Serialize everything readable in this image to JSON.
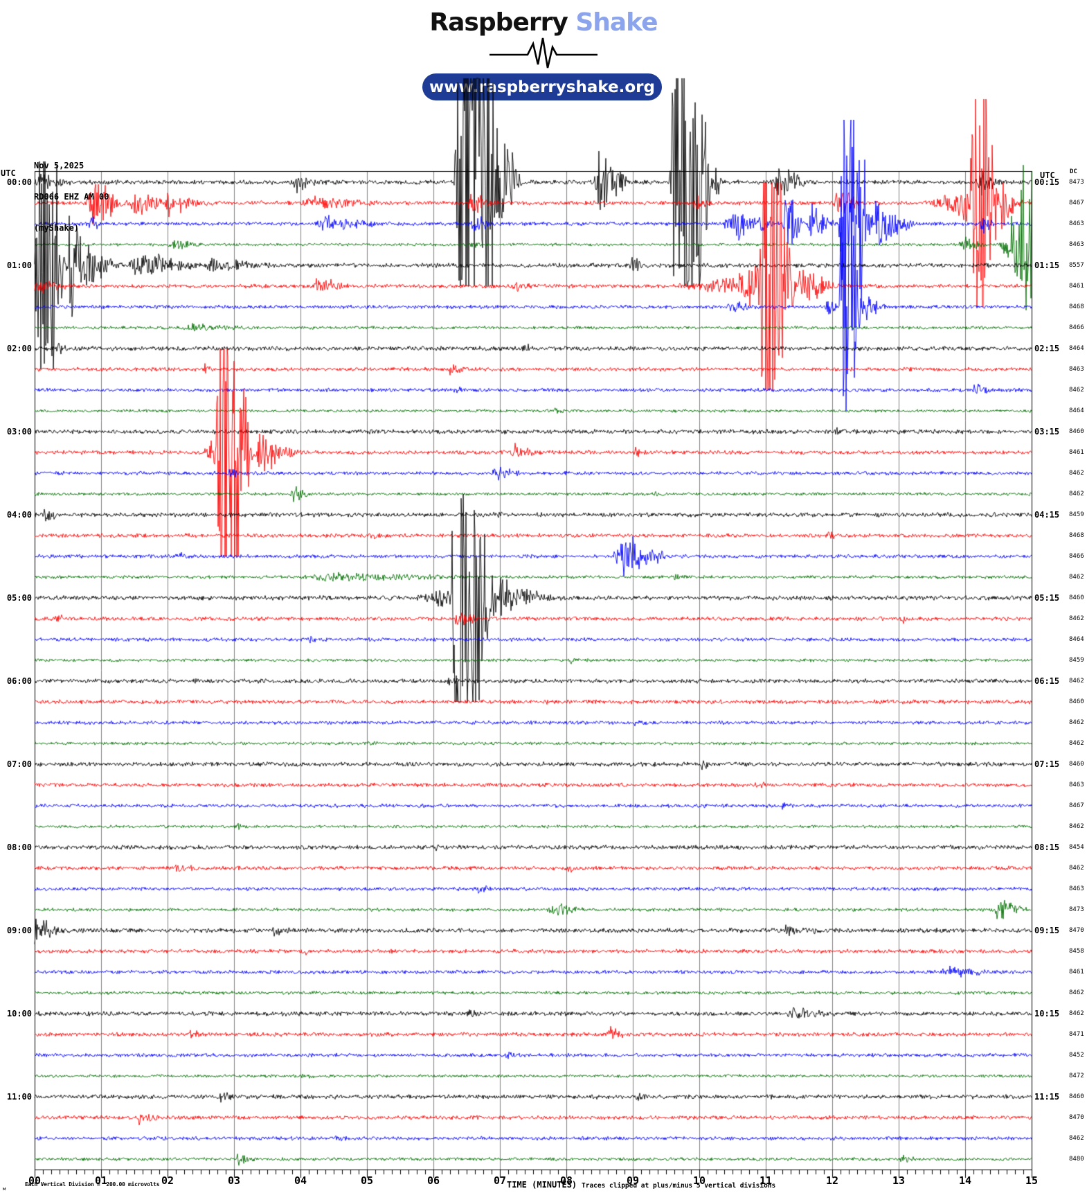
{
  "header": {
    "logo_primary": "Raspberry",
    "logo_secondary": " Shake",
    "url_badge": "www.raspberryshake.org"
  },
  "station": {
    "date": "Nov 5,2025",
    "id": "RD066 EHZ AM 00",
    "network": "(myShake)"
  },
  "axes": {
    "left_utc": "UTC",
    "right_utc": "UTC",
    "dc_header": "DC"
  },
  "footer": {
    "scale_note": "Each Vertical Division =  200.00 microvolts",
    "x_title": "TIME (MINUTES)",
    "clip_note": "Traces clipped at plus/minus 5 vertical divisions",
    "watermark": "м"
  },
  "chart_data": {
    "type": "line",
    "title": "RD066 EHZ AM 00 (myShake) helicorder, Nov 5,2025, UTC",
    "xlabel": "TIME (MINUTES)",
    "x_range_minutes": [
      0,
      15
    ],
    "minutes_per_row": 15,
    "grid": true,
    "x_ticks": [
      "00",
      "01",
      "02",
      "03",
      "04",
      "05",
      "06",
      "07",
      "08",
      "09",
      "10",
      "11",
      "12",
      "13",
      "14",
      "15"
    ],
    "hours_left": [
      "00:00",
      "01:00",
      "02:00",
      "03:00",
      "04:00",
      "05:00",
      "06:00",
      "07:00",
      "08:00",
      "09:00",
      "10:00",
      "11:00"
    ],
    "hours_right": [
      "00:15",
      "01:15",
      "02:15",
      "03:15",
      "04:15",
      "05:15",
      "06:15",
      "07:15",
      "08:15",
      "09:15",
      "10:15",
      "11:15"
    ],
    "trace_colors": {
      "black": "#000000",
      "red": "#fe0000",
      "blue": "#0000fe",
      "green": "#006f00"
    },
    "grid_color": "#7f7f7f",
    "clip_divisions": 5,
    "microvolts_per_division": 200.0,
    "rows": [
      {
        "color": "black",
        "dc": 8473,
        "noise": 3.2,
        "events": [
          [
            0,
            0.6,
            10
          ],
          [
            3.85,
            4.3,
            12
          ],
          [
            6.3,
            7.35,
            400
          ],
          [
            8.4,
            9.0,
            55
          ],
          [
            9.55,
            10.35,
            400
          ],
          [
            11.1,
            11.7,
            26
          ],
          [
            14.15,
            14.6,
            20
          ]
        ]
      },
      {
        "color": "red",
        "dc": 8467,
        "noise": 2.8,
        "events": [
          [
            0.75,
            1.45,
            38
          ],
          [
            1.4,
            2.05,
            18
          ],
          [
            1.95,
            2.15,
            25
          ],
          [
            2.15,
            2.8,
            12,
            "decay"
          ],
          [
            4.0,
            5.3,
            7
          ],
          [
            6.5,
            7.0,
            14
          ],
          [
            9.9,
            10.25,
            12
          ],
          [
            12.0,
            12.5,
            20
          ],
          [
            13.3,
            14.05,
            28,
            "ramp"
          ],
          [
            14.05,
            14.55,
            400
          ],
          [
            14.55,
            14.9,
            40,
            "decay"
          ]
        ]
      },
      {
        "color": "blue",
        "dc": 8463,
        "noise": 2.6,
        "events": [
          [
            0.8,
            1.05,
            10
          ],
          [
            4.2,
            5.3,
            11
          ],
          [
            6.5,
            7.05,
            11
          ],
          [
            10.35,
            11.25,
            22
          ],
          [
            11.25,
            11.6,
            55
          ],
          [
            11.6,
            12.1,
            28
          ],
          [
            12.1,
            12.65,
            380
          ],
          [
            12.65,
            13.35,
            45,
            "decay"
          ],
          [
            14.2,
            14.5,
            14
          ]
        ]
      },
      {
        "color": "green",
        "dc": 8463,
        "noise": 2.1,
        "events": [
          [
            2.0,
            2.6,
            6
          ],
          [
            6.55,
            6.75,
            7
          ],
          [
            13.9,
            14.45,
            10
          ],
          [
            14.45,
            15.0,
            170,
            "ramp"
          ]
        ]
      },
      {
        "color": "black",
        "dc": 8557,
        "noise": 3.2,
        "events": [
          [
            0,
            0.52,
            400
          ],
          [
            0.52,
            0.78,
            90,
            "decay"
          ],
          [
            0.6,
            1.4,
            45,
            "decay"
          ],
          [
            1.4,
            2.6,
            20
          ],
          [
            2.6,
            3.7,
            10,
            "decay"
          ],
          [
            8.95,
            9.2,
            12
          ]
        ]
      },
      {
        "color": "red",
        "dc": 8461,
        "noise": 2.8,
        "events": [
          [
            0,
            0.8,
            10,
            "decay"
          ],
          [
            4.15,
            4.8,
            11
          ],
          [
            7.15,
            7.5,
            9
          ],
          [
            9.4,
            10.9,
            30,
            "ramp"
          ],
          [
            10.9,
            11.5,
            400
          ],
          [
            11.5,
            12.2,
            38,
            "decay"
          ]
        ]
      },
      {
        "color": "blue",
        "dc": 8468,
        "noise": 2.6,
        "events": [
          [
            10.4,
            11.0,
            7
          ],
          [
            11.9,
            12.1,
            16
          ],
          [
            12.1,
            12.5,
            350
          ],
          [
            12.5,
            12.9,
            20,
            "decay"
          ]
        ]
      },
      {
        "color": "green",
        "dc": 8466,
        "noise": 2.2,
        "events": [
          [
            2.2,
            3.3,
            5
          ]
        ]
      },
      {
        "color": "black",
        "dc": 8464,
        "noise": 3.1,
        "events": [
          [
            0.3,
            0.55,
            10
          ],
          [
            7.3,
            7.55,
            6
          ]
        ]
      },
      {
        "color": "red",
        "dc": 8463,
        "noise": 2.8,
        "events": [
          [
            6.2,
            6.55,
            8
          ],
          [
            2.5,
            2.75,
            5
          ]
        ]
      },
      {
        "color": "blue",
        "dc": 8462,
        "noise": 2.6,
        "events": [
          [
            14.1,
            14.4,
            9
          ],
          [
            6.3,
            6.5,
            4
          ]
        ]
      },
      {
        "color": "green",
        "dc": 8464,
        "noise": 2.1,
        "events": [
          [
            7.8,
            8.05,
            4
          ]
        ]
      },
      {
        "color": "black",
        "dc": 8460,
        "noise": 3.1,
        "events": [
          [
            5.0,
            5.2,
            5
          ],
          [
            12.0,
            12.25,
            4
          ]
        ]
      },
      {
        "color": "red",
        "dc": 8461,
        "noise": 2.8,
        "events": [
          [
            2.4,
            2.72,
            26,
            "ramp"
          ],
          [
            2.72,
            3.35,
            400
          ],
          [
            3.35,
            4.1,
            35,
            "decay"
          ],
          [
            7.15,
            7.65,
            11
          ],
          [
            9.0,
            9.25,
            6
          ]
        ]
      },
      {
        "color": "blue",
        "dc": 8462,
        "noise": 2.6,
        "events": [
          [
            2.9,
            3.15,
            6
          ],
          [
            6.85,
            7.4,
            8
          ]
        ]
      },
      {
        "color": "green",
        "dc": 8462,
        "noise": 2.2,
        "events": [
          [
            3.85,
            4.2,
            12
          ],
          [
            9.3,
            9.55,
            4
          ]
        ]
      },
      {
        "color": "black",
        "dc": 8459,
        "noise": 3.1,
        "events": [
          [
            0.1,
            0.4,
            13
          ],
          [
            6.9,
            7.15,
            5
          ]
        ]
      },
      {
        "color": "red",
        "dc": 8468,
        "noise": 2.8,
        "events": [
          [
            5.0,
            5.25,
            5
          ],
          [
            11.9,
            12.15,
            5
          ]
        ]
      },
      {
        "color": "blue",
        "dc": 8466,
        "noise": 2.6,
        "events": [
          [
            8.7,
            9.6,
            38
          ],
          [
            2.1,
            2.35,
            4
          ]
        ]
      },
      {
        "color": "green",
        "dc": 8462,
        "noise": 2.3,
        "events": [
          [
            4.0,
            6.8,
            5
          ],
          [
            9.6,
            9.85,
            4
          ]
        ]
      },
      {
        "color": "black",
        "dc": 8460,
        "noise": 3.2,
        "events": [
          [
            5.5,
            6.25,
            16,
            "ramp"
          ],
          [
            6.25,
            7.0,
            400
          ],
          [
            7.0,
            7.9,
            28,
            "decay"
          ]
        ]
      },
      {
        "color": "red",
        "dc": 8462,
        "noise": 2.8,
        "events": [
          [
            6.3,
            6.8,
            10
          ],
          [
            0.3,
            0.55,
            5
          ],
          [
            13.0,
            13.25,
            6
          ]
        ]
      },
      {
        "color": "blue",
        "dc": 8464,
        "noise": 2.6,
        "events": [
          [
            4.1,
            4.35,
            4
          ]
        ]
      },
      {
        "color": "green",
        "dc": 8459,
        "noise": 2.1,
        "events": [
          [
            8.0,
            8.25,
            4
          ]
        ]
      },
      {
        "color": "black",
        "dc": 8462,
        "noise": 3.1,
        "events": [
          [
            6.2,
            6.45,
            6
          ]
        ]
      },
      {
        "color": "red",
        "dc": 8460,
        "noise": 2.8,
        "events": [
          [
            7.7,
            7.95,
            4
          ]
        ]
      },
      {
        "color": "blue",
        "dc": 8462,
        "noise": 2.6,
        "events": [
          [
            9.0,
            9.25,
            4
          ]
        ]
      },
      {
        "color": "green",
        "dc": 8462,
        "noise": 2.1,
        "events": [
          [
            5.0,
            5.25,
            3
          ]
        ]
      },
      {
        "color": "black",
        "dc": 8460,
        "noise": 3.1,
        "events": [
          [
            10.0,
            10.25,
            4
          ]
        ]
      },
      {
        "color": "red",
        "dc": 8463,
        "noise": 2.8,
        "events": [
          [
            10.8,
            11.05,
            4
          ]
        ]
      },
      {
        "color": "blue",
        "dc": 8467,
        "noise": 2.6,
        "events": [
          [
            11.2,
            11.45,
            4
          ]
        ]
      },
      {
        "color": "green",
        "dc": 8462,
        "noise": 2.1,
        "events": [
          [
            3.0,
            3.25,
            3
          ]
        ]
      },
      {
        "color": "black",
        "dc": 8454,
        "noise": 3.1,
        "events": [
          [
            6.0,
            6.25,
            4
          ]
        ]
      },
      {
        "color": "red",
        "dc": 8462,
        "noise": 2.8,
        "events": [
          [
            2.1,
            2.45,
            6
          ],
          [
            8.0,
            8.3,
            4
          ]
        ]
      },
      {
        "color": "blue",
        "dc": 8463,
        "noise": 2.6,
        "events": [
          [
            6.6,
            6.95,
            4
          ]
        ]
      },
      {
        "color": "green",
        "dc": 8473,
        "noise": 2.3,
        "events": [
          [
            7.7,
            8.3,
            12
          ],
          [
            14.4,
            15.0,
            18
          ]
        ]
      },
      {
        "color": "black",
        "dc": 8470,
        "noise": 3.2,
        "events": [
          [
            0.0,
            0.5,
            26,
            "decay"
          ],
          [
            3.55,
            3.85,
            8
          ],
          [
            11.2,
            11.95,
            6
          ]
        ]
      },
      {
        "color": "red",
        "dc": 8458,
        "noise": 2.8,
        "events": [
          [
            4.0,
            4.25,
            4
          ]
        ]
      },
      {
        "color": "blue",
        "dc": 8461,
        "noise": 2.6,
        "events": [
          [
            13.6,
            14.5,
            6
          ]
        ]
      },
      {
        "color": "green",
        "dc": 8462,
        "noise": 2.4,
        "events": []
      },
      {
        "color": "black",
        "dc": 8462,
        "noise": 3.1,
        "events": [
          [
            11.3,
            12.1,
            6
          ],
          [
            6.5,
            6.75,
            4
          ]
        ]
      },
      {
        "color": "red",
        "dc": 8471,
        "noise": 2.8,
        "events": [
          [
            8.6,
            8.95,
            8
          ],
          [
            2.3,
            2.65,
            4
          ]
        ]
      },
      {
        "color": "blue",
        "dc": 8452,
        "noise": 2.6,
        "events": [
          [
            7.0,
            7.35,
            4
          ]
        ]
      },
      {
        "color": "green",
        "dc": 8472,
        "noise": 2.1,
        "events": [
          [
            4.0,
            4.25,
            3
          ]
        ]
      },
      {
        "color": "black",
        "dc": 8460,
        "noise": 3.1,
        "events": [
          [
            2.75,
            3.05,
            6
          ],
          [
            9.0,
            9.3,
            4
          ]
        ]
      },
      {
        "color": "red",
        "dc": 8470,
        "noise": 2.8,
        "events": [
          [
            1.5,
            1.95,
            8
          ]
        ]
      },
      {
        "color": "blue",
        "dc": 8462,
        "noise": 2.6,
        "events": [
          [
            4.5,
            4.75,
            3
          ]
        ]
      },
      {
        "color": "green",
        "dc": 8480,
        "noise": 2.3,
        "events": [
          [
            3.0,
            3.35,
            8
          ],
          [
            13.0,
            13.3,
            4
          ]
        ]
      }
    ]
  }
}
